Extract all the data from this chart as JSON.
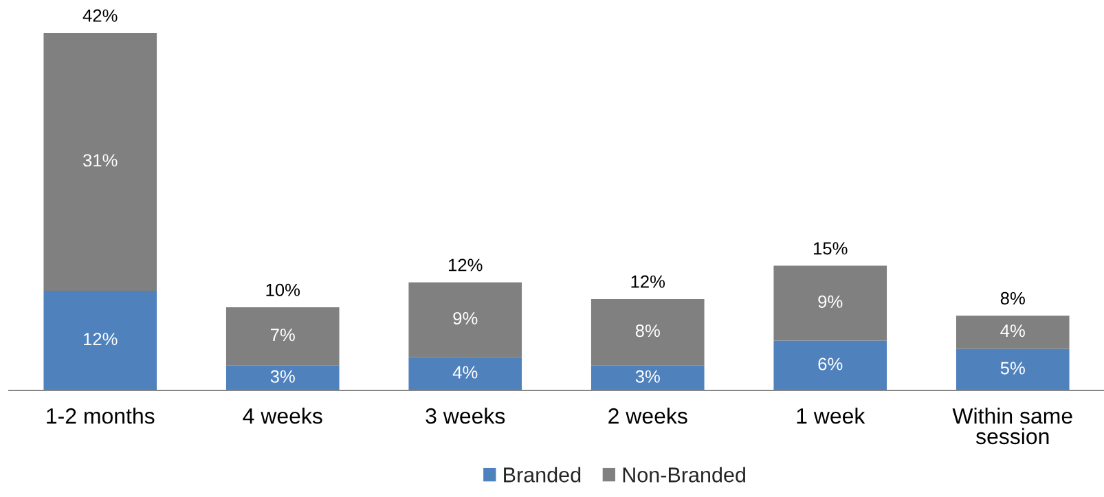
{
  "chart_data": {
    "type": "bar",
    "stacked": true,
    "categories": [
      "1-2 months",
      "4 weeks",
      "3 weeks",
      "2 weeks",
      "1 week",
      "Within same session"
    ],
    "series": [
      {
        "name": "Branded",
        "color": "#4f81bd",
        "values": [
          12,
          3,
          4,
          3,
          6,
          5
        ],
        "value_labels": [
          "12%",
          "3%",
          "4%",
          "3%",
          "6%",
          "5%"
        ]
      },
      {
        "name": "Non-Branded",
        "color": "#808080",
        "values": [
          31,
          7,
          9,
          8,
          9,
          4
        ],
        "value_labels": [
          "31%",
          "7%",
          "9%",
          "8%",
          "9%",
          "4%"
        ]
      }
    ],
    "totals": [
      "42%",
      "10%",
      "12%",
      "12%",
      "15%",
      "8%"
    ],
    "legend": "bottom",
    "tick_labels": "x"
  }
}
